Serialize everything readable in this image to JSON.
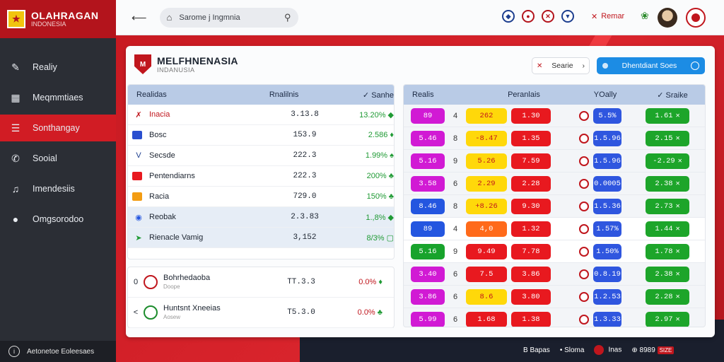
{
  "brand": {
    "title": "OLAHRAGAN",
    "subtitle": "INDONESIA"
  },
  "sidebar": {
    "items": [
      {
        "label": "Realiy",
        "icon": "pencil-icon"
      },
      {
        "label": "Meqmmtiaes",
        "icon": "calendar-icon"
      },
      {
        "label": "Sonthangay",
        "icon": "list-icon",
        "active": true
      },
      {
        "label": "Sooial",
        "icon": "phone-icon"
      },
      {
        "label": "Imendesiis",
        "icon": "music-icon"
      },
      {
        "label": "Omgsorodoo",
        "icon": "users-icon"
      }
    ],
    "footer": "Aetonetoe Eoleesaes"
  },
  "topbar": {
    "search_placeholder": "Sarome j Ingmnia",
    "remar": "Remar"
  },
  "panel": {
    "title": "MELFHNENASIA",
    "subtitle": "INDANUSIA",
    "btn_white": "Searie",
    "btn_blue": "Dhentdiant Soes"
  },
  "left_table": {
    "headers": [
      "Realidas",
      "Rnalilnis",
      "Sanhe"
    ],
    "rows": [
      {
        "name": "Inacia",
        "value": "3.13.8",
        "pct": "13.20%"
      },
      {
        "name": "Bosc",
        "value": "153.9",
        "pct": "2.586"
      },
      {
        "name": "Secsde",
        "value": "222.3",
        "pct": "1.99%"
      },
      {
        "name": "Pentendiarns",
        "value": "222.3",
        "pct": "200%"
      },
      {
        "name": "Racia",
        "value": "729.0",
        "pct": "150%"
      },
      {
        "name": "Reobak",
        "value": "2.3.83",
        "pct": "1.,8%"
      },
      {
        "name": "Rienacle Vamig",
        "value": "3,152",
        "pct": "8/3%"
      }
    ]
  },
  "left_table2": {
    "rows": [
      {
        "name": "Bohrhedaoba",
        "sub": "Doope",
        "value": "TT.3.3",
        "pct": "0.0%"
      },
      {
        "name": "Huntsnt Xneeias",
        "sub": "Aosew",
        "value": "T5.3.0",
        "pct": "0.0%"
      }
    ]
  },
  "right_table": {
    "headers": [
      "Realis",
      "Peranlais",
      "YOally",
      "Sraike"
    ],
    "rows": [
      {
        "a": "89",
        "n": "4",
        "b": "262",
        "c": "1.30",
        "d": "5.5%",
        "e": "1.61"
      },
      {
        "a": "5.46",
        "n": "8",
        "b": "-8.47",
        "c": "1.35",
        "d": "1.5.96",
        "e": "2.15"
      },
      {
        "a": "5.16",
        "n": "9",
        "b": "5.26",
        "c": "7.59",
        "d": "1.5.96",
        "e": "-2.29"
      },
      {
        "a": "3.58",
        "n": "6",
        "b": "2.29",
        "c": "2.28",
        "d": "0.0005",
        "e": "2.38"
      },
      {
        "a": "8.46",
        "n": "8",
        "b": "+8.26",
        "c": "9.30",
        "d": "1.5.36",
        "e": "2.73"
      },
      {
        "a": "89",
        "n": "4",
        "b": "4,0",
        "c": "1.32",
        "d": "1.57%",
        "e": "1.44"
      },
      {
        "a": "5.16",
        "n": "9",
        "b": "9.49",
        "c": "7.78",
        "d": "1.50%",
        "e": "1.78"
      },
      {
        "a": "3.40",
        "n": "6",
        "b": "7.5",
        "c": "3.86",
        "d": "0.8.19",
        "e": "2.38"
      },
      {
        "a": "3.86",
        "n": "6",
        "b": "8.6",
        "c": "3.80",
        "d": "1.2.53",
        "e": "2.28"
      },
      {
        "a": "5.99",
        "n": "6",
        "b": "1.68",
        "c": "1.38",
        "d": "1.3.33",
        "e": "2.97"
      }
    ]
  },
  "statusbar": {
    "items": [
      "Bapas",
      "Sloma",
      "Inas",
      "8989"
    ]
  }
}
